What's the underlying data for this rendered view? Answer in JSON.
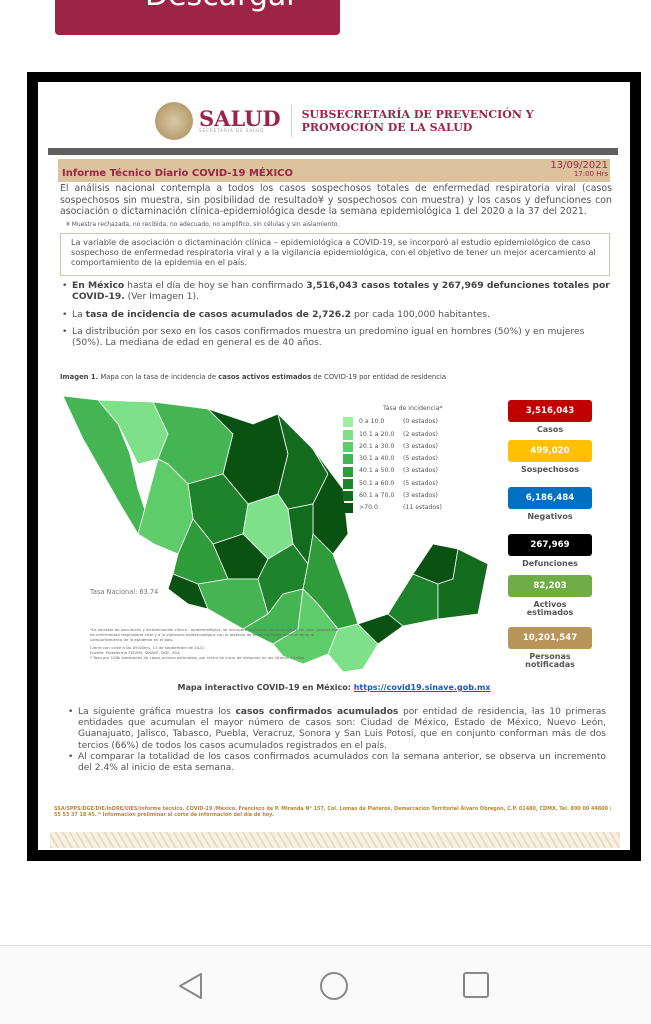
{
  "download_button": {
    "label": "Descargar",
    "color": "#9b2447"
  },
  "header": {
    "logo_text": "SALUD",
    "logo_subtext": "SECRETARÍA DE SALUD",
    "subsecretaria": [
      "SUBSECRETARÍA DE PREVENCIÓN Y",
      "PROMOCIÓN DE LA SALUD"
    ]
  },
  "report": {
    "title": "Informe Técnico Diario COVID-19 MÉXICO",
    "date": "13/09/2021",
    "time": "17:00 Hrs",
    "intro": "El análisis nacional contempla a todos los casos sospechosos totales de enfermedad respiratoria viral (casos sospechosos sin muestra, sin posibilidad de resultado¥ y sospechosos con muestra) y los casos y defunciones con asociación o dictaminación clínica-epidemiológica desde la semana epidemiológica 1 del 2020 a la 37 del 2021.",
    "footnote": "¥ Muestra rechazada, no recibida, no adecuado, no amplifico, sin células y sin aislamiento.",
    "box": "La variable de asociación o dictaminación clínica – epidemiológica a COVID-19, se incorporó al estudio epidemiológico de caso sospechoso de enfermedad respiratoria viral y a la vigilancia epidemiológica, con el objetivo de tener un mejor acercamiento al comportamiento de la epidemia en el país.",
    "bullets1": [
      {
        "b1": "En México",
        "t1": " hasta el día de hoy se han confirmado ",
        "b2": "3,516,043 casos totales y 267,969 defunciones totales por COVID-19.",
        "t2": " (Ver Imagen 1)."
      },
      {
        "t0": "La ",
        "b1": "tasa de incidencia de casos acumulados de 2,726.2",
        "t1": " por cada 100,000 habitantes."
      },
      {
        "t0": "La distribución por sexo en los casos confirmados muestra un predomino igual en hombres (50%) y en mujeres (50%). La mediana de edad en general es de 40 años."
      }
    ],
    "caption": {
      "b0": "Imagen 1.",
      "t0": " Mapa con la tasa de incidencia de ",
      "b1": "casos activos estimados",
      "t1": " de COVID-19 por entidad de residencia"
    },
    "legend": {
      "title": "Tasa de incidencia*",
      "rows": [
        {
          "range": "0  a  10.0",
          "count": "(0 estados)",
          "color": "#9ef0a0"
        },
        {
          "range": "10.1 a  20.0",
          "count": "(2 estados)",
          "color": "#7fe08a"
        },
        {
          "range": "20.1 a  30.0",
          "count": "(3 estados)",
          "color": "#5fcc6a"
        },
        {
          "range": "30.1 a  40.0",
          "count": "(5 estados)",
          "color": "#45b553"
        },
        {
          "range": "40.1 a  50.0",
          "count": "(3 estados)",
          "color": "#2f9c3c"
        },
        {
          "range": "50.1 a  60.0",
          "count": "(5 estados)",
          "color": "#1f832b"
        },
        {
          "range": "60.1 a  70.0",
          "count": "(3 estados)",
          "color": "#136b1e"
        },
        {
          "range": ">70.0",
          "count": "(11 estados)",
          "color": "#0a5212"
        }
      ]
    },
    "stats": [
      {
        "value": "3,516,043",
        "label": "Casos",
        "color": "#c00000"
      },
      {
        "value": "499,020",
        "label": "Sospechosos",
        "color": "#ffc000"
      },
      {
        "value": "6,186,484",
        "label": "Negativos",
        "color": "#0070c0"
      },
      {
        "value": "267,969",
        "label": "Defunciones",
        "color": "#000000"
      },
      {
        "value": "82,203",
        "label": "Activos estimados",
        "color": "#70ad47"
      },
      {
        "value": "10,201,547",
        "label": "Personas notificadas",
        "color": "#b8955a"
      }
    ],
    "tasa_nacional": "Tasa Nacional: 63.74",
    "map_notes": [
      "*La variable de asociación y dictaminación clínica - epidemiológica, se incorporó al estudio epidemiológico de caso sospechoso de enfermedad respiratoria viral y a la vigilancia epidemiológica con el objetivo de tener un mejor acercamiento al comportamiento de la epidemia en el país.",
      "Cierre con corte a las 09:00hrs, 13 de septiembre de 2021",
      "Fuente: Plataforma SISVER, SINAVE, DGE, SSA",
      "* Tasa por 100k habitantes de casos activos estimados, por fecha de inicio de síntomas en los últimos 14 días"
    ],
    "map_link": {
      "label": "Mapa interactivo COVID-19 en México: ",
      "url": "https://covid19.sinave.gob.mx"
    },
    "bullets2": [
      {
        "t0": "La siguiente gráfica muestra los ",
        "b1": "casos confirmados acumulados",
        "t1": " por entidad de residencia, las 10 primeras entidades que acumulan el mayor número de casos son: Ciudad de México, Estado de México, Nuevo León, Guanajuato, Jalisco, Tabasco, Puebla, Veracruz, Sonora y San Luis Potosí, que en conjunto conforman más de dos tercios (66%) de todos los casos acumulados registrados en el país."
      },
      {
        "t0": "Al comparar la totalidad de los casos confirmados acumulados con la semana anterior, se observa un incremento del 2.4% al inicio de esta semana."
      }
    ],
    "footer": "SSA/SPPS/DGE/DIE/InDRE/UIES/Informe técnico. COVID-19 /México. Francisco de P. Miranda N° 157, Col. Lomas de Plateros, Demarcación Territorial Álvaro Obregón, C.P. 01480, CDMX. Tel. 800 00 44800 / 55 53 37 18 45. * Información preliminar al corte de información del día de hoy."
  },
  "navbar": {
    "buttons": [
      "back",
      "home",
      "recents"
    ]
  }
}
